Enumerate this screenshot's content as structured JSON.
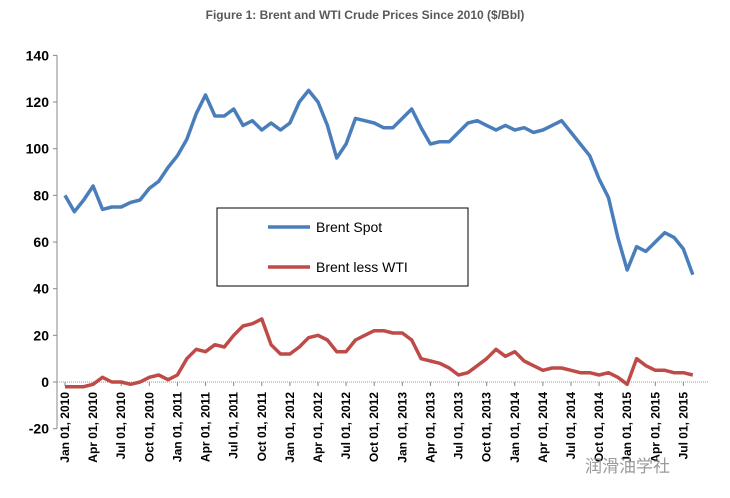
{
  "chart_data": {
    "type": "line",
    "title": "Figure 1: Brent and WTI Crude Prices Since 2010 ($/Bbl)",
    "xlabel": "",
    "ylabel": "",
    "ylim": [
      -20,
      140
    ],
    "yticks": [
      -20,
      0,
      20,
      40,
      60,
      80,
      100,
      120,
      140
    ],
    "grid": false,
    "legend_position": "center-left",
    "x_tick_labels": [
      "Jan 01, 2010",
      "Apr 01, 2010",
      "Jul 01, 2010",
      "Oct 01, 2010",
      "Jan 01, 2011",
      "Apr 01, 2011",
      "Jul 01, 2011",
      "Oct 01, 2011",
      "Jan 01, 2012",
      "Apr 01, 2012",
      "Jul 01, 2012",
      "Oct 01, 2012",
      "Jan 01, 2013",
      "Apr 01, 2013",
      "Jul 01, 2013",
      "Oct 01, 2013",
      "Jan 01, 2014",
      "Apr 01, 2014",
      "Jul 01, 2014",
      "Oct 01, 2014",
      "Jan 01, 2015",
      "Apr 01, 2015",
      "Jul 01, 2015"
    ],
    "x_start": "Jan 2010",
    "x_step": "monthly",
    "series": [
      {
        "name": "Brent Spot",
        "color": "#4a7ebb",
        "values": [
          80,
          73,
          78,
          84,
          74,
          75,
          75,
          77,
          78,
          83,
          86,
          92,
          97,
          104,
          115,
          123,
          114,
          114,
          117,
          110,
          112,
          108,
          111,
          108,
          111,
          120,
          125,
          120,
          110,
          96,
          102,
          113,
          112,
          111,
          109,
          109,
          113,
          117,
          109,
          102,
          103,
          103,
          107,
          111,
          112,
          110,
          108,
          110,
          108,
          109,
          107,
          108,
          110,
          112,
          107,
          102,
          97,
          87,
          79,
          62,
          48,
          58,
          56,
          60,
          64,
          62,
          57,
          46
        ]
      },
      {
        "name": "Brent less WTI",
        "color": "#be4b48",
        "values": [
          -2,
          -2,
          -2,
          -1,
          2,
          0,
          0,
          -1,
          0,
          2,
          3,
          1,
          3,
          10,
          14,
          13,
          16,
          15,
          20,
          24,
          25,
          27,
          16,
          12,
          12,
          15,
          19,
          20,
          18,
          13,
          13,
          18,
          20,
          22,
          22,
          21,
          21,
          18,
          10,
          9,
          8,
          6,
          3,
          4,
          7,
          10,
          14,
          11,
          13,
          9,
          7,
          5,
          6,
          6,
          5,
          4,
          4,
          3,
          4,
          2,
          -1,
          10,
          7,
          5,
          5,
          4,
          4,
          3
        ]
      }
    ]
  },
  "watermark": "润滑油学社"
}
